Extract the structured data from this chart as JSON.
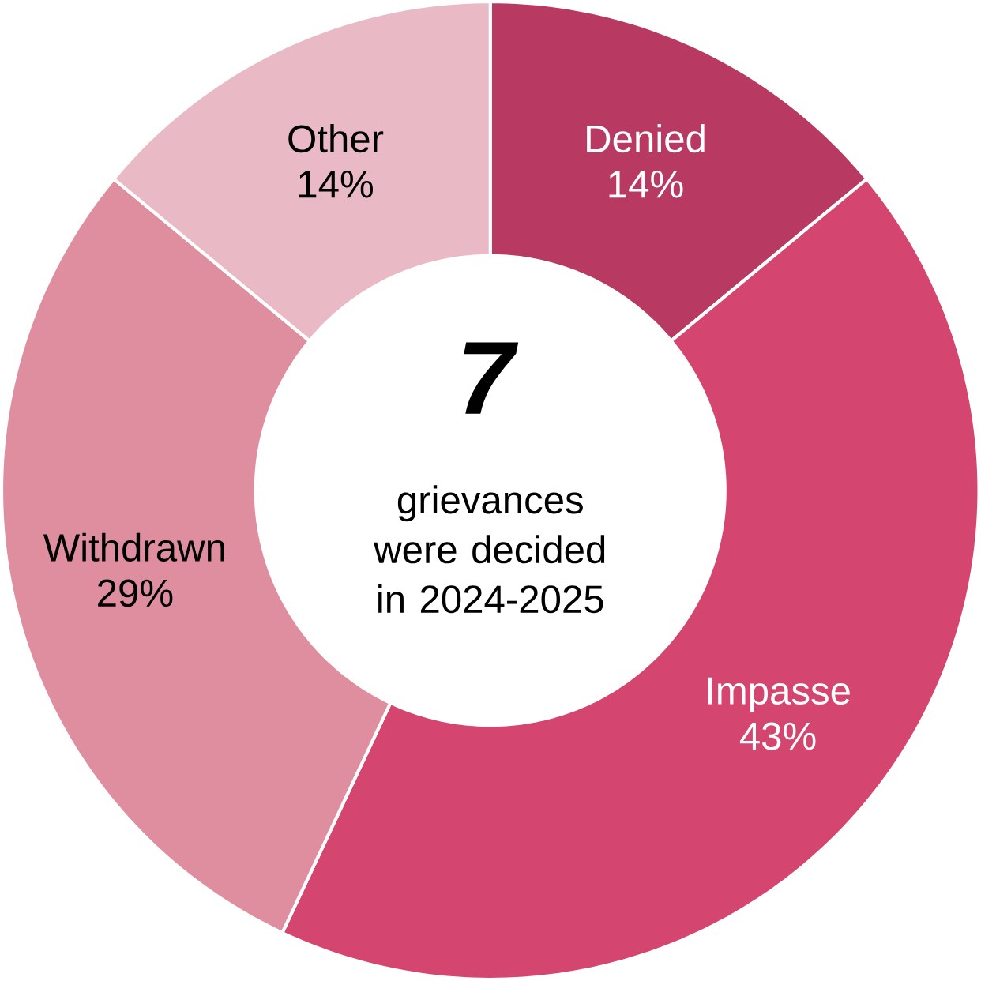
{
  "chart_data": {
    "type": "donut",
    "title": "7",
    "subtitle": "grievances were decided in 2024-2025",
    "categories": [
      "Denied",
      "Impasse",
      "Withdrawn",
      "Other"
    ],
    "values": [
      14,
      43,
      29,
      14
    ],
    "colors": [
      "#b83a62",
      "#d4456f",
      "#df8ea0",
      "#e9b9c6"
    ],
    "value_labels": [
      "14%",
      "43%",
      "29%",
      "14%"
    ]
  }
}
